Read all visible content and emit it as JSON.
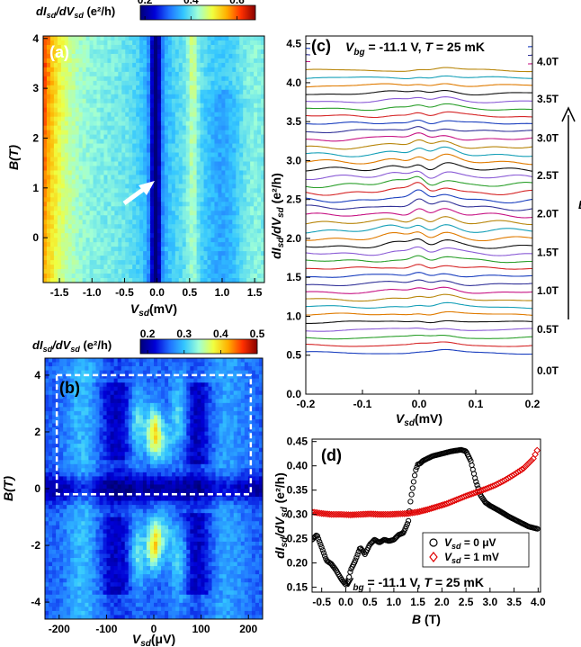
{
  "colors": {
    "heat": [
      "#00007a",
      "#0000d6",
      "#1f6fff",
      "#33c6ff",
      "#9fffd8",
      "#f0ff40",
      "#ffb000",
      "#ff3000",
      "#880000"
    ],
    "series_palette": [
      "#1a3fbf",
      "#d62728",
      "#2ca02c",
      "#8b5cd6",
      "#111111",
      "#e07b00",
      "#17a0b8",
      "#b8860b",
      "#c71585",
      "#333399"
    ],
    "d_sd0": "#000000",
    "d_sd1": "#e00000"
  },
  "chart_data": [
    {
      "id": "a",
      "type": "heatmap",
      "panel_label": "(a)",
      "xlabel_main": "V",
      "xlabel_sub": "sd",
      "xlabel_unit": "(mV)",
      "ylabel": "B(T)",
      "xlim": [
        -1.75,
        1.65
      ],
      "ylim": [
        -0.9,
        4.05
      ],
      "xticks": [
        -1.5,
        -1.0,
        -0.5,
        0.0,
        0.5,
        1.0,
        1.5
      ],
      "xtick_labels": [
        "-1.5",
        "-1.0",
        "-0.5",
        "0.0",
        "0.5",
        "1.0",
        "1.5"
      ],
      "yticks": [
        0,
        1,
        2,
        3,
        4
      ],
      "ytick_labels": [
        "0",
        "1",
        "2",
        "3",
        "4"
      ],
      "colorbar": {
        "label_main": "dI",
        "label_sub1": "sd",
        "label_mid": "/dV",
        "label_sub2": "sd",
        "label_unit": " (e²/h)",
        "range": [
          0.18,
          0.68
        ],
        "ticks": [
          0.2,
          0.4,
          0.6
        ],
        "tick_labels": [
          "0.2",
          "0.4",
          "0.6"
        ]
      },
      "annotation": "white arrow pointing to dip near V_sd = 0, B ≈ 1 T"
    },
    {
      "id": "b",
      "type": "heatmap",
      "panel_label": "(b)",
      "xlabel_main": "V",
      "xlabel_sub": "sd",
      "xlabel_unit": "(μV)",
      "ylabel": "B(T)",
      "xlim": [
        -230,
        230
      ],
      "ylim": [
        -4.6,
        4.6
      ],
      "xticks": [
        -200,
        -100,
        0,
        100,
        200
      ],
      "xtick_labels": [
        "-200",
        "-100",
        "0",
        "100",
        "200"
      ],
      "yticks": [
        -4,
        -2,
        0,
        2,
        4
      ],
      "ytick_labels": [
        "-4",
        "-2",
        "0",
        "2",
        "4"
      ],
      "colorbar": {
        "label_main": "dI",
        "label_sub1": "sd",
        "label_mid": "/dV",
        "label_sub2": "sd",
        "label_unit": " (e²/h)",
        "range": [
          0.18,
          0.5
        ],
        "ticks": [
          0.2,
          0.3,
          0.4,
          0.5
        ],
        "tick_labels": [
          "0.2",
          "0.3",
          "0.4",
          "0.5"
        ]
      },
      "annotation": "dashed white rectangle from V_sd ≈ -205 to 205 μV, B ≈ -0.2 to 4.0 T"
    },
    {
      "id": "c",
      "type": "line",
      "panel_label": "(c)",
      "title_vbg": "V",
      "title_vbg_sub": "bg",
      "title_rest": " = -11.1 V, ",
      "title_T": "T",
      "title_T_rest": " = 25 mK",
      "xlabel_main": "V",
      "xlabel_sub": "sd",
      "xlabel_unit": "(mV)",
      "ylabel_main": "dI",
      "ylabel_sub1": "sd",
      "ylabel_mid": "/dV",
      "ylabel_sub2": "sd",
      "ylabel_unit": " (e²/h)",
      "xlim": [
        -0.2,
        0.2
      ],
      "ylim": [
        0.0,
        4.6
      ],
      "xticks": [
        -0.2,
        -0.1,
        0.0,
        0.1,
        0.2
      ],
      "xtick_labels": [
        "-0.2",
        "-0.1",
        "0.0",
        "0.1",
        "0.2"
      ],
      "yticks": [
        0.0,
        0.5,
        1.0,
        1.5,
        2.0,
        2.5,
        3.0,
        3.5,
        4.0,
        4.5
      ],
      "ytick_labels": [
        "0.0",
        "0.5",
        "1.0",
        "1.5",
        "2.0",
        "2.5",
        "3.0",
        "3.5",
        "4.0",
        "4.5"
      ],
      "right_labels": [
        "0.0T",
        "0.5T",
        "1.0T",
        "1.5T",
        "2.0T",
        "2.5T",
        "3.0T",
        "3.5T",
        "4.0T"
      ],
      "right_label_y": [
        0.3,
        0.83,
        1.33,
        1.82,
        2.32,
        2.81,
        3.29,
        3.79,
        4.27
      ],
      "arrow_label": "B",
      "n_traces": 41,
      "offset_start": 0.26,
      "offset_step": 0.098,
      "base_conductance": 0.27,
      "peak_field_T": 2.0
    },
    {
      "id": "d",
      "type": "scatter",
      "panel_label": "(d)",
      "title_vbg": "V",
      "title_vbg_sub": "bg",
      "title_rest": " = -11.1 V, ",
      "title_T": "T",
      "title_T_rest": " = 25 mK",
      "xlabel_main": "B",
      "xlabel_unit": " (T)",
      "ylabel_main": "dI",
      "ylabel_sub1": "sd",
      "ylabel_mid": "/dV",
      "ylabel_sub2": "sd",
      "ylabel_unit": " (e²/h)",
      "xlim": [
        -0.7,
        4.05
      ],
      "ylim": [
        0.14,
        0.455
      ],
      "xticks": [
        -0.5,
        0.0,
        0.5,
        1.0,
        1.5,
        2.0,
        2.5,
        3.0,
        3.5,
        4.0
      ],
      "xtick_labels": [
        "-0.5",
        "0.0",
        "0.5",
        "1.0",
        "1.5",
        "2.0",
        "2.5",
        "3.0",
        "3.5",
        "4.0"
      ],
      "yticks": [
        0.15,
        0.2,
        0.25,
        0.3,
        0.35,
        0.4,
        0.45
      ],
      "ytick_labels": [
        "0.15",
        "0.20",
        "0.25",
        "0.30",
        "0.35",
        "0.40",
        "0.45"
      ],
      "legend_position": "lower-right",
      "series": [
        {
          "name_main": "V",
          "name_sub": "sd",
          "name_rest": " = 0 μV",
          "marker": "circle",
          "x": [
            -0.7,
            -0.6,
            -0.5,
            -0.4,
            -0.3,
            -0.2,
            -0.1,
            0.0,
            0.05,
            0.1,
            0.2,
            0.3,
            0.4,
            0.5,
            0.6,
            0.7,
            0.8,
            0.9,
            1.0,
            1.1,
            1.2,
            1.3,
            1.35,
            1.4,
            1.45,
            1.5,
            1.55,
            1.6,
            1.7,
            1.8,
            2.0,
            2.2,
            2.4,
            2.5,
            2.6,
            2.7,
            2.8,
            2.9,
            3.0,
            3.2,
            3.4,
            3.6,
            3.8,
            4.0
          ],
          "y": [
            0.248,
            0.258,
            0.232,
            0.205,
            0.198,
            0.185,
            0.168,
            0.155,
            0.162,
            0.185,
            0.205,
            0.232,
            0.218,
            0.238,
            0.248,
            0.242,
            0.248,
            0.245,
            0.248,
            0.258,
            0.262,
            0.285,
            0.33,
            0.36,
            0.39,
            0.403,
            0.405,
            0.41,
            0.415,
            0.42,
            0.425,
            0.43,
            0.433,
            0.43,
            0.41,
            0.37,
            0.34,
            0.325,
            0.318,
            0.307,
            0.295,
            0.285,
            0.275,
            0.27
          ]
        },
        {
          "name_main": "V",
          "name_sub": "sd",
          "name_rest": " = 1 mV",
          "marker": "diamond",
          "x": [
            -0.7,
            -0.5,
            -0.3,
            -0.1,
            0.1,
            0.3,
            0.5,
            0.7,
            0.9,
            1.1,
            1.3,
            1.5,
            1.7,
            1.9,
            2.1,
            2.3,
            2.5,
            2.7,
            2.9,
            3.1,
            3.3,
            3.5,
            3.7,
            3.9,
            4.0
          ],
          "y": [
            0.305,
            0.302,
            0.3,
            0.3,
            0.299,
            0.3,
            0.301,
            0.3,
            0.3,
            0.301,
            0.302,
            0.305,
            0.31,
            0.316,
            0.322,
            0.33,
            0.338,
            0.345,
            0.352,
            0.36,
            0.37,
            0.382,
            0.395,
            0.415,
            0.436
          ]
        }
      ]
    }
  ]
}
